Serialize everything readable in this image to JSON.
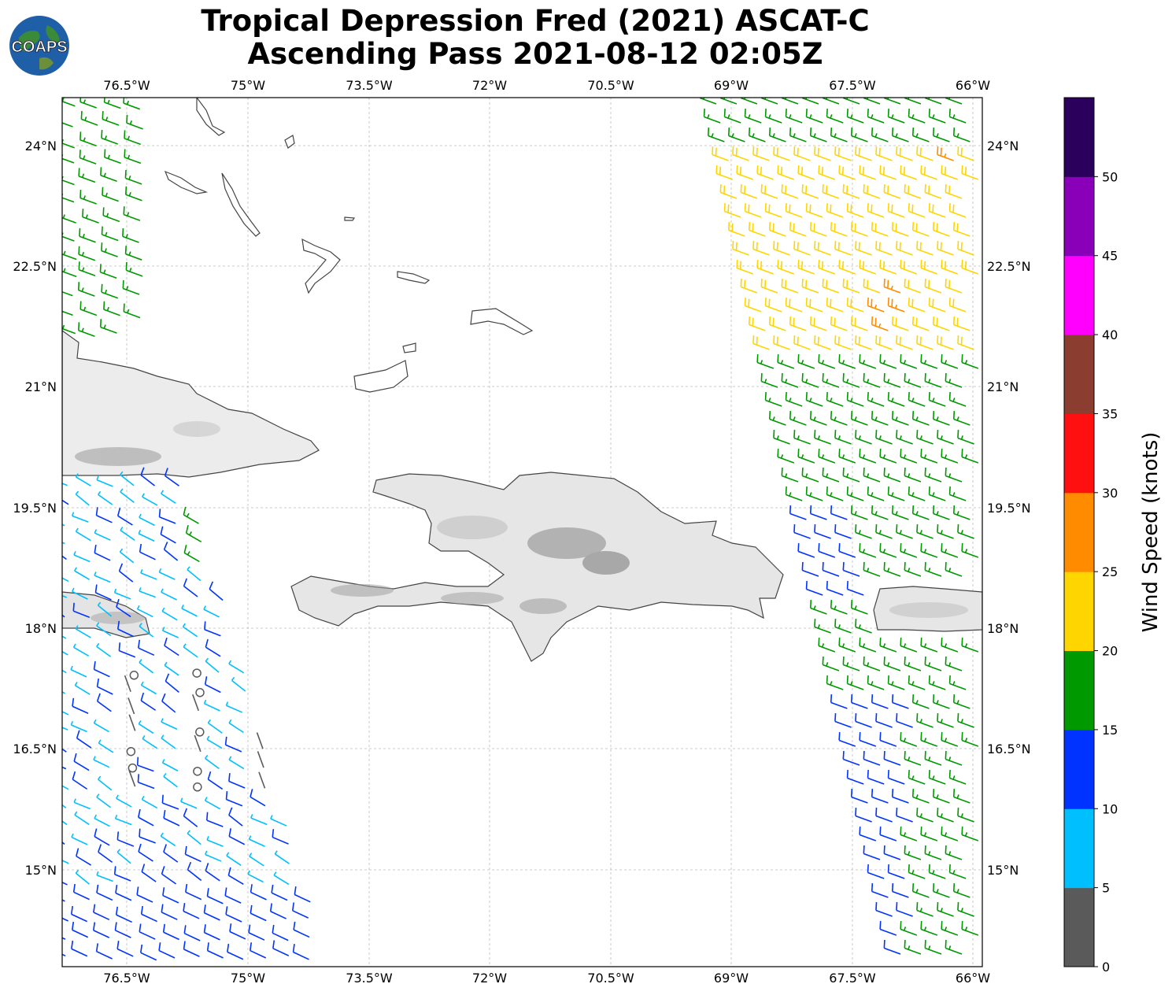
{
  "title": {
    "line1": "Tropical Depression Fred (2021) ASCAT-C",
    "line2": "Ascending Pass 2021-08-12 02:05Z"
  },
  "logo": {
    "text": "COAPS",
    "icon": "globe-logo-icon"
  },
  "map": {
    "lon_ticks": [
      "76.5°W",
      "75°W",
      "73.5°W",
      "72°W",
      "70.5°W",
      "69°W",
      "67.5°W",
      "66°W"
    ],
    "lat_ticks": [
      "24°N",
      "22.5°N",
      "21°N",
      "19.5°N",
      "18°N",
      "16.5°N",
      "15°N"
    ],
    "grid": true,
    "land_shading": "gray-terrain",
    "swaths": [
      "west",
      "east"
    ]
  },
  "colorbar": {
    "label": "Wind Speed (knots)",
    "ticks": [
      "0",
      "5",
      "10",
      "15",
      "20",
      "25",
      "30",
      "35",
      "40",
      "45",
      "50"
    ],
    "bins": [
      {
        "min": 0,
        "max": 5,
        "color": "#5a5a5a"
      },
      {
        "min": 5,
        "max": 10,
        "color": "#00bfff"
      },
      {
        "min": 10,
        "max": 15,
        "color": "#0033ff"
      },
      {
        "min": 15,
        "max": 20,
        "color": "#009900"
      },
      {
        "min": 20,
        "max": 25,
        "color": "#ffd500"
      },
      {
        "min": 25,
        "max": 30,
        "color": "#ff8c00"
      },
      {
        "min": 30,
        "max": 35,
        "color": "#ff1010"
      },
      {
        "min": 35,
        "max": 40,
        "color": "#8b3e2f"
      },
      {
        "min": 40,
        "max": 45,
        "color": "#ff00ff"
      },
      {
        "min": 45,
        "max": 50,
        "color": "#8a00b8"
      },
      {
        "min": 50,
        "max": 55,
        "color": "#2b005c"
      }
    ]
  }
}
